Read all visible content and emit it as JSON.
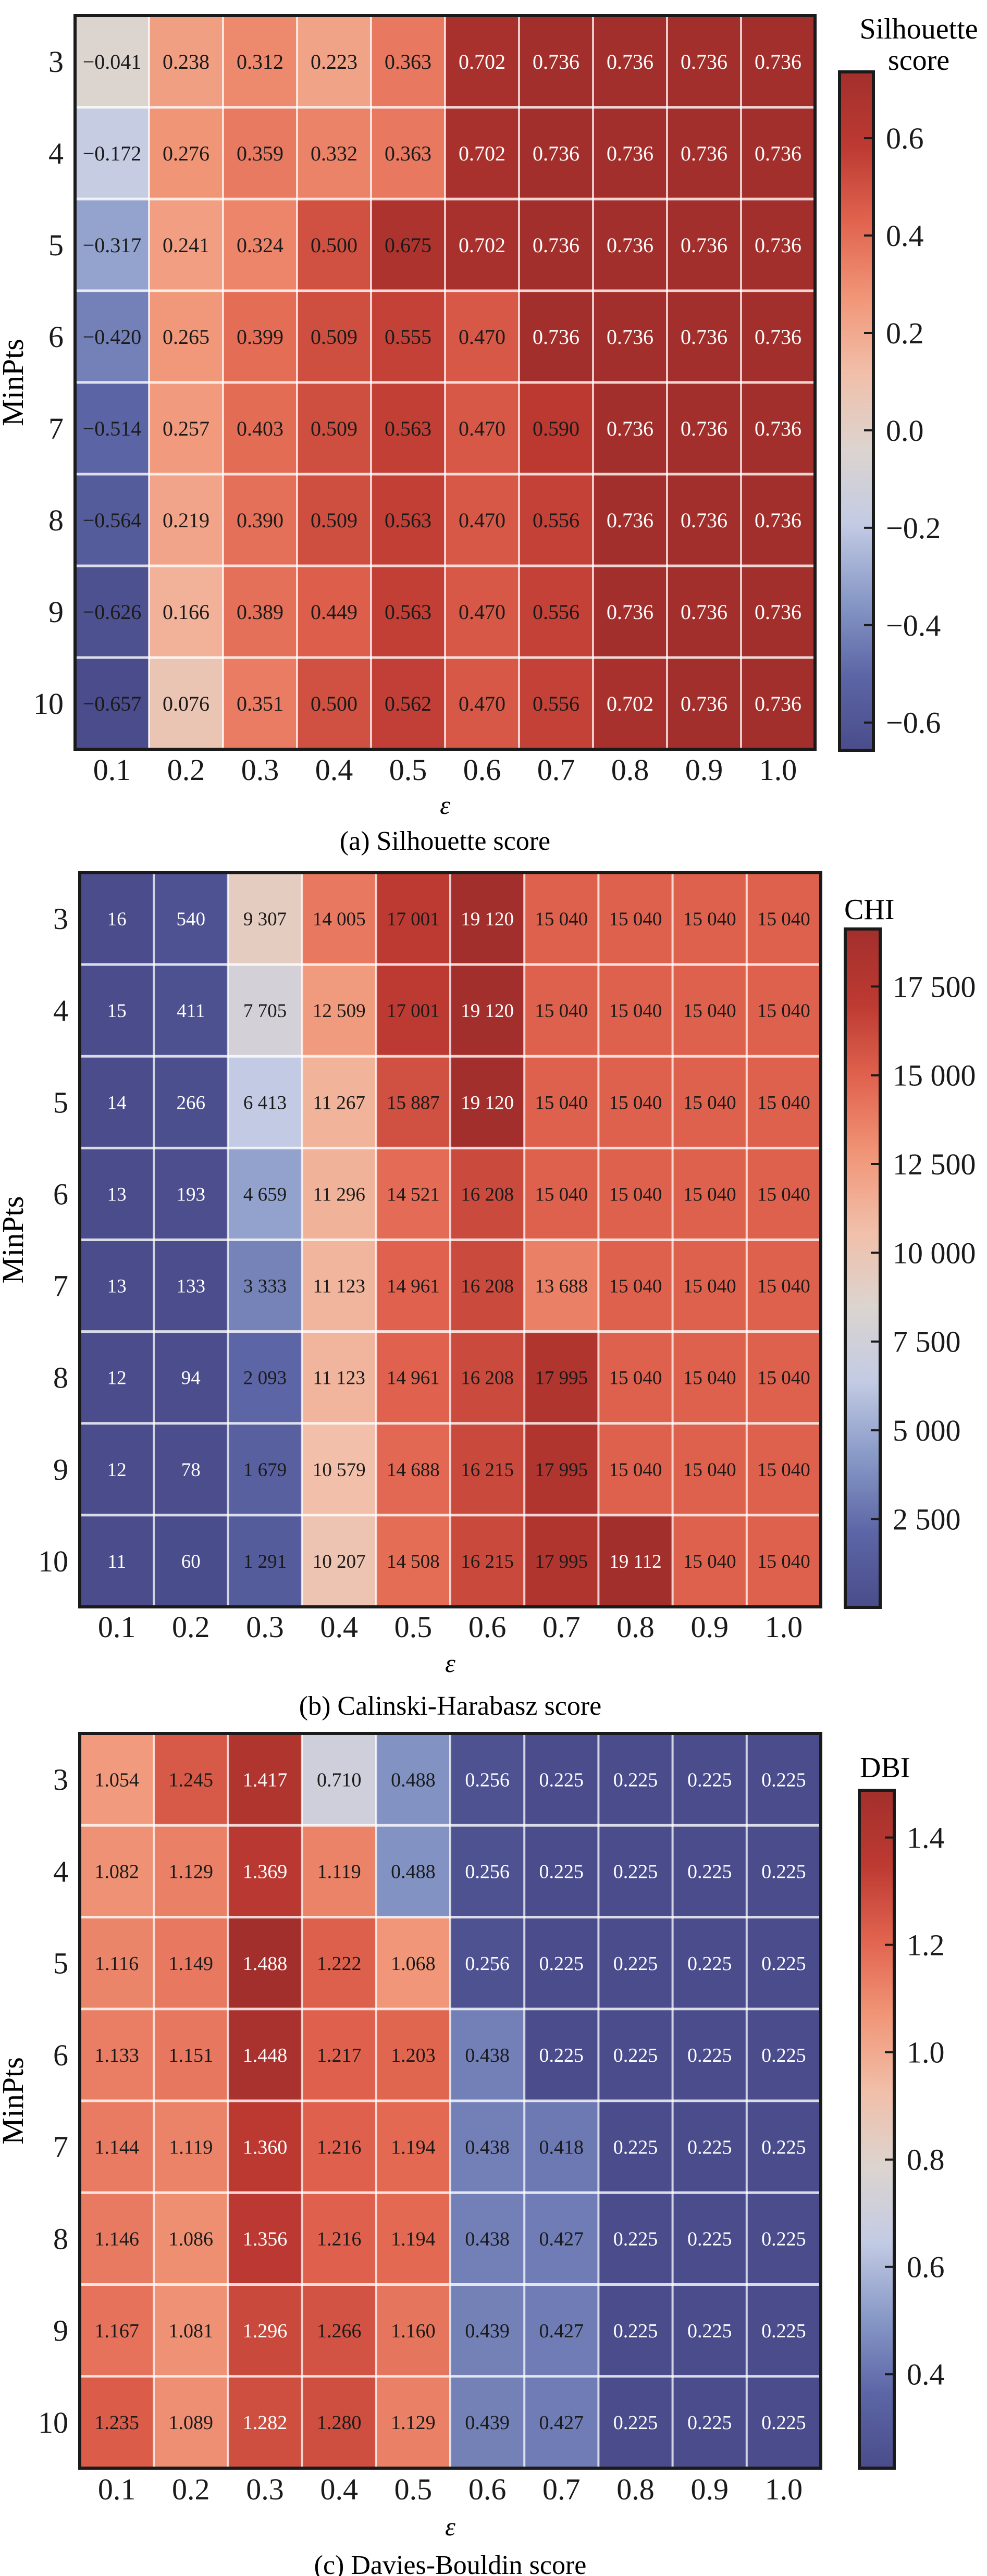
{
  "chart_data": [
    {
      "type": "heatmap",
      "id": "silhouette",
      "caption": "(a) Silhouette score",
      "xlabel": "ε",
      "ylabel": "MinPts",
      "colorbar_label": [
        "Silhouette",
        "score"
      ],
      "x": [
        "0.1",
        "0.2",
        "0.3",
        "0.4",
        "0.5",
        "0.6",
        "0.7",
        "0.8",
        "0.9",
        "1.0"
      ],
      "y": [
        "3",
        "4",
        "5",
        "6",
        "7",
        "8",
        "9",
        "10"
      ],
      "vmin": -0.657,
      "vmax": 0.736,
      "colorbar_ticks": [
        {
          "value": 0.6,
          "label": "0.6"
        },
        {
          "value": 0.4,
          "label": "0.4"
        },
        {
          "value": 0.2,
          "label": "0.2"
        },
        {
          "value": 0.0,
          "label": "0.0"
        },
        {
          "value": -0.2,
          "label": "−0.2"
        },
        {
          "value": -0.4,
          "label": "−0.4"
        },
        {
          "value": -0.6,
          "label": "−0.6"
        }
      ],
      "values": [
        [
          -0.041,
          0.238,
          0.312,
          0.223,
          0.363,
          0.702,
          0.736,
          0.736,
          0.736,
          0.736
        ],
        [
          -0.172,
          0.276,
          0.359,
          0.332,
          0.363,
          0.702,
          0.736,
          0.736,
          0.736,
          0.736
        ],
        [
          -0.317,
          0.241,
          0.324,
          0.5,
          0.675,
          0.702,
          0.736,
          0.736,
          0.736,
          0.736
        ],
        [
          -0.42,
          0.265,
          0.399,
          0.509,
          0.555,
          0.47,
          0.736,
          0.736,
          0.736,
          0.736
        ],
        [
          -0.514,
          0.257,
          0.403,
          0.509,
          0.563,
          0.47,
          0.59,
          0.736,
          0.736,
          0.736
        ],
        [
          -0.564,
          0.219,
          0.39,
          0.509,
          0.563,
          0.47,
          0.556,
          0.736,
          0.736,
          0.736
        ],
        [
          -0.626,
          0.166,
          0.389,
          0.449,
          0.563,
          0.47,
          0.556,
          0.736,
          0.736,
          0.736
        ],
        [
          -0.657,
          0.076,
          0.351,
          0.5,
          0.562,
          0.47,
          0.556,
          0.702,
          0.736,
          0.736
        ]
      ],
      "labels": [
        [
          "−0.041",
          "0.238",
          "0.312",
          "0.223",
          "0.363",
          "0.702",
          "0.736",
          "0.736",
          "0.736",
          "0.736"
        ],
        [
          "−0.172",
          "0.276",
          "0.359",
          "0.332",
          "0.363",
          "0.702",
          "0.736",
          "0.736",
          "0.736",
          "0.736"
        ],
        [
          "−0.317",
          "0.241",
          "0.324",
          "0.500",
          "0.675",
          "0.702",
          "0.736",
          "0.736",
          "0.736",
          "0.736"
        ],
        [
          "−0.420",
          "0.265",
          "0.399",
          "0.509",
          "0.555",
          "0.470",
          "0.736",
          "0.736",
          "0.736",
          "0.736"
        ],
        [
          "−0.514",
          "0.257",
          "0.403",
          "0.509",
          "0.563",
          "0.470",
          "0.590",
          "0.736",
          "0.736",
          "0.736"
        ],
        [
          "−0.564",
          "0.219",
          "0.390",
          "0.509",
          "0.563",
          "0.470",
          "0.556",
          "0.736",
          "0.736",
          "0.736"
        ],
        [
          "−0.626",
          "0.166",
          "0.389",
          "0.449",
          "0.563",
          "0.470",
          "0.556",
          "0.736",
          "0.736",
          "0.736"
        ],
        [
          "−0.657",
          "0.076",
          "0.351",
          "0.500",
          "0.562",
          "0.470",
          "0.556",
          "0.702",
          "0.736",
          "0.736"
        ]
      ],
      "label_colors": [
        "kkkkkwwwww",
        "kkkkkwwwww",
        "kkkkkwwwww",
        "kkkkkkwwww",
        "kkkkkkkwww",
        "kkkkkkkwww",
        "kkkkkkkwww",
        "kkkkkkkwww"
      ]
    },
    {
      "type": "heatmap",
      "id": "chi",
      "caption": "(b) Calinski-Harabasz score",
      "xlabel": "ε",
      "ylabel": "MinPts",
      "colorbar_label": [
        "CHI"
      ],
      "x": [
        "0.1",
        "0.2",
        "0.3",
        "0.4",
        "0.5",
        "0.6",
        "0.7",
        "0.8",
        "0.9",
        "1.0"
      ],
      "y": [
        "3",
        "4",
        "5",
        "6",
        "7",
        "8",
        "9",
        "10"
      ],
      "vmin": 11,
      "vmax": 19120,
      "colorbar_ticks": [
        {
          "value": 17500,
          "label": "17 500"
        },
        {
          "value": 15000,
          "label": "15 000"
        },
        {
          "value": 12500,
          "label": "12 500"
        },
        {
          "value": 10000,
          "label": "10 000"
        },
        {
          "value": 7500,
          "label": "7 500"
        },
        {
          "value": 5000,
          "label": "5 000"
        },
        {
          "value": 2500,
          "label": "2 500"
        }
      ],
      "values": [
        [
          16,
          540,
          9307,
          14005,
          17001,
          19120,
          15040,
          15040,
          15040,
          15040
        ],
        [
          15,
          411,
          7705,
          12509,
          17001,
          19120,
          15040,
          15040,
          15040,
          15040
        ],
        [
          14,
          266,
          6413,
          11267,
          15887,
          19120,
          15040,
          15040,
          15040,
          15040
        ],
        [
          13,
          193,
          4659,
          11296,
          14521,
          16208,
          15040,
          15040,
          15040,
          15040
        ],
        [
          13,
          133,
          3333,
          11123,
          14961,
          16208,
          13688,
          15040,
          15040,
          15040
        ],
        [
          12,
          94,
          2093,
          11123,
          14961,
          16208,
          17995,
          15040,
          15040,
          15040
        ],
        [
          12,
          78,
          1679,
          10579,
          14688,
          16215,
          17995,
          15040,
          15040,
          15040
        ],
        [
          11,
          60,
          1291,
          10207,
          14508,
          16215,
          17995,
          19112,
          15040,
          15040
        ]
      ],
      "labels": [
        [
          "16",
          "540",
          "9 307",
          "14 005",
          "17 001",
          "19 120",
          "15 040",
          "15 040",
          "15 040",
          "15 040"
        ],
        [
          "15",
          "411",
          "7 705",
          "12 509",
          "17 001",
          "19 120",
          "15 040",
          "15 040",
          "15 040",
          "15 040"
        ],
        [
          "14",
          "266",
          "6 413",
          "11 267",
          "15 887",
          "19 120",
          "15 040",
          "15 040",
          "15 040",
          "15 040"
        ],
        [
          "13",
          "193",
          "4 659",
          "11 296",
          "14 521",
          "16 208",
          "15 040",
          "15 040",
          "15 040",
          "15 040"
        ],
        [
          "13",
          "133",
          "3 333",
          "11 123",
          "14 961",
          "16 208",
          "13 688",
          "15 040",
          "15 040",
          "15 040"
        ],
        [
          "12",
          "94",
          "2 093",
          "11 123",
          "14 961",
          "16 208",
          "17 995",
          "15 040",
          "15 040",
          "15 040"
        ],
        [
          "12",
          "78",
          "1 679",
          "10 579",
          "14 688",
          "16 215",
          "17 995",
          "15 040",
          "15 040",
          "15 040"
        ],
        [
          "11",
          "60",
          "1 291",
          "10 207",
          "14 508",
          "16 215",
          "17 995",
          "19 112",
          "15 040",
          "15 040"
        ]
      ],
      "label_colors": [
        "wwkkkwkkkk",
        "wwkkkwkkkk",
        "wwkkkwkkkk",
        "wwkkkkkkkk",
        "wwkkkkkkkk",
        "wwkkkkkkkk",
        "wwkkkkkkkk",
        "wwkkkkkwkk"
      ]
    },
    {
      "type": "heatmap",
      "id": "dbi",
      "caption": "(c) Davies-Bouldin score",
      "xlabel": "ε",
      "ylabel": "MinPts",
      "colorbar_label": [
        "DBI"
      ],
      "x": [
        "0.1",
        "0.2",
        "0.3",
        "0.4",
        "0.5",
        "0.6",
        "0.7",
        "0.8",
        "0.9",
        "1.0"
      ],
      "y": [
        "3",
        "4",
        "5",
        "6",
        "7",
        "8",
        "9",
        "10"
      ],
      "vmin": 0.225,
      "vmax": 1.488,
      "colorbar_ticks": [
        {
          "value": 1.4,
          "label": "1.4"
        },
        {
          "value": 1.2,
          "label": "1.2"
        },
        {
          "value": 1.0,
          "label": "1.0"
        },
        {
          "value": 0.8,
          "label": "0.8"
        },
        {
          "value": 0.6,
          "label": "0.6"
        },
        {
          "value": 0.4,
          "label": "0.4"
        }
      ],
      "values": [
        [
          1.054,
          1.245,
          1.417,
          0.71,
          0.488,
          0.256,
          0.225,
          0.225,
          0.225,
          0.225
        ],
        [
          1.082,
          1.129,
          1.369,
          1.119,
          0.488,
          0.256,
          0.225,
          0.225,
          0.225,
          0.225
        ],
        [
          1.116,
          1.149,
          1.488,
          1.222,
          1.068,
          0.256,
          0.225,
          0.225,
          0.225,
          0.225
        ],
        [
          1.133,
          1.151,
          1.448,
          1.217,
          1.203,
          0.438,
          0.225,
          0.225,
          0.225,
          0.225
        ],
        [
          1.144,
          1.119,
          1.36,
          1.216,
          1.194,
          0.438,
          0.418,
          0.225,
          0.225,
          0.225
        ],
        [
          1.146,
          1.086,
          1.356,
          1.216,
          1.194,
          0.438,
          0.427,
          0.225,
          0.225,
          0.225
        ],
        [
          1.167,
          1.081,
          1.296,
          1.266,
          1.16,
          0.439,
          0.427,
          0.225,
          0.225,
          0.225
        ],
        [
          1.235,
          1.089,
          1.282,
          1.28,
          1.129,
          0.439,
          0.427,
          0.225,
          0.225,
          0.225
        ]
      ],
      "labels": [
        [
          "1.054",
          "1.245",
          "1.417",
          "0.710",
          "0.488",
          "0.256",
          "0.225",
          "0.225",
          "0.225",
          "0.225"
        ],
        [
          "1.082",
          "1.129",
          "1.369",
          "1.119",
          "0.488",
          "0.256",
          "0.225",
          "0.225",
          "0.225",
          "0.225"
        ],
        [
          "1.116",
          "1.149",
          "1.488",
          "1.222",
          "1.068",
          "0.256",
          "0.225",
          "0.225",
          "0.225",
          "0.225"
        ],
        [
          "1.133",
          "1.151",
          "1.448",
          "1.217",
          "1.203",
          "0.438",
          "0.225",
          "0.225",
          "0.225",
          "0.225"
        ],
        [
          "1.144",
          "1.119",
          "1.360",
          "1.216",
          "1.194",
          "0.438",
          "0.418",
          "0.225",
          "0.225",
          "0.225"
        ],
        [
          "1.146",
          "1.086",
          "1.356",
          "1.216",
          "1.194",
          "0.438",
          "0.427",
          "0.225",
          "0.225",
          "0.225"
        ],
        [
          "1.167",
          "1.081",
          "1.296",
          "1.266",
          "1.160",
          "0.439",
          "0.427",
          "0.225",
          "0.225",
          "0.225"
        ],
        [
          "1.235",
          "1.089",
          "1.282",
          "1.280",
          "1.129",
          "0.439",
          "0.427",
          "0.225",
          "0.225",
          "0.225"
        ]
      ],
      "label_colors": [
        "kkwkkwwwww",
        "kkwkkwwwww",
        "kkwkkwwwww",
        "kkwkkkwwww",
        "kkwkkkkwww",
        "kkwkkkkwww",
        "kkwkkkkwww",
        "kkwkkkkwww"
      ]
    }
  ],
  "colormap": {
    "name": "coolwarm-like",
    "stops": [
      "#4a4c8b",
      "#5c66a6",
      "#8899c7",
      "#c3cbe4",
      "#dcd4cf",
      "#f1bfa9",
      "#f19678",
      "#e1644f",
      "#bd3a32",
      "#a32f2c"
    ]
  }
}
